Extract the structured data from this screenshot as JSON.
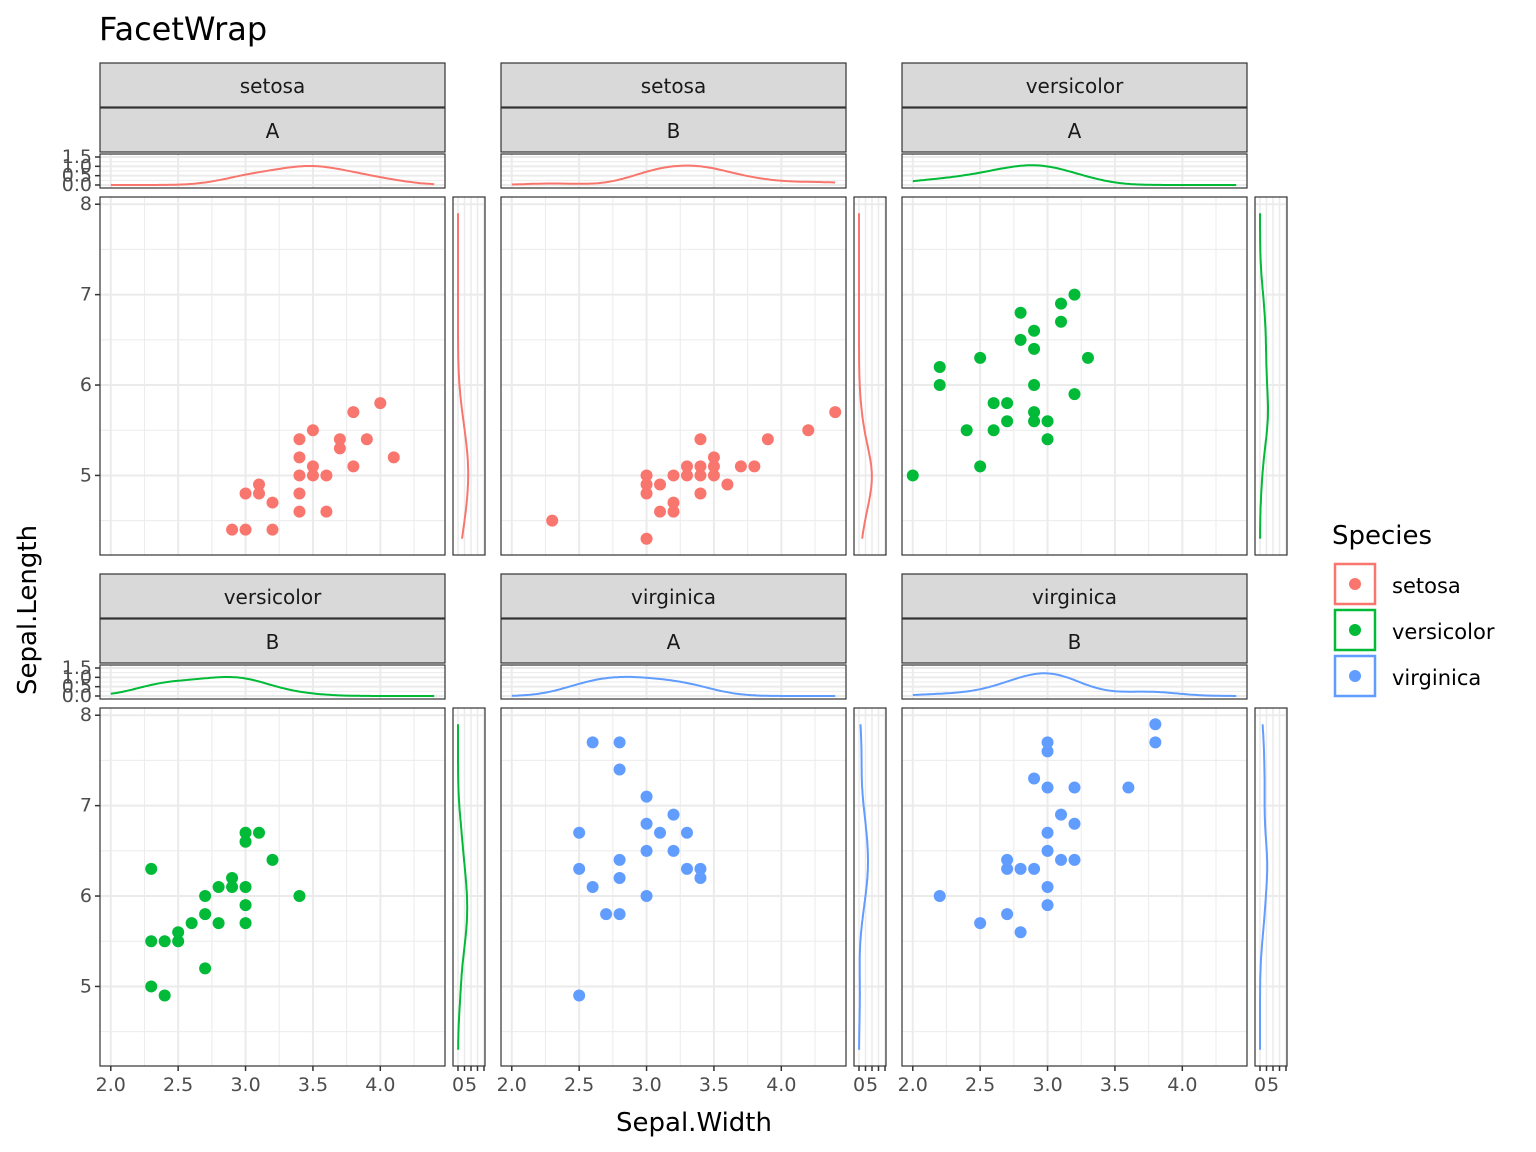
{
  "chart_data": {
    "type": "scatter",
    "title": "FacetWrap",
    "xlabel": "Sepal.Width",
    "ylabel": "Sepal.Length",
    "xlim": [
      1.92,
      4.48
    ],
    "ylim": [
      4.12,
      8.08
    ],
    "x_ticks": [
      2.0,
      2.5,
      3.0,
      3.5,
      4.0
    ],
    "x_tick_labels": [
      "2.0",
      "2.5",
      "3.0",
      "3.5",
      "4.0"
    ],
    "y_ticks": [
      5,
      6,
      7,
      8
    ],
    "y_tick_labels": [
      "5",
      "6",
      "7",
      "8"
    ],
    "top_density_ticks": [
      "0.0",
      "0.5",
      "1.0",
      "1.5"
    ],
    "right_density_ticks": [
      "0",
      "5"
    ],
    "grid": true,
    "legend": {
      "title": "Species",
      "position": "right",
      "entries": [
        {
          "label": "setosa",
          "color": "#F8766D"
        },
        {
          "label": "versicolor",
          "color": "#00BA38"
        },
        {
          "label": "virginica",
          "color": "#619CFF"
        }
      ]
    },
    "panels": [
      {
        "strip1": "setosa",
        "strip2": "A",
        "series": "setosa",
        "points": [
          [
            2.9,
            4.4
          ],
          [
            3.0,
            4.4
          ],
          [
            3.2,
            4.4
          ],
          [
            3.0,
            4.8
          ],
          [
            3.1,
            4.8
          ],
          [
            3.4,
            4.8
          ],
          [
            3.1,
            4.9
          ],
          [
            3.2,
            4.7
          ],
          [
            3.4,
            4.6
          ],
          [
            3.6,
            4.6
          ],
          [
            3.4,
            5.0
          ],
          [
            3.5,
            5.0
          ],
          [
            3.6,
            5.0
          ],
          [
            3.4,
            5.2
          ],
          [
            3.5,
            5.1
          ],
          [
            3.8,
            5.1
          ],
          [
            3.4,
            5.4
          ],
          [
            3.5,
            5.5
          ],
          [
            3.7,
            5.4
          ],
          [
            3.9,
            5.4
          ],
          [
            3.7,
            5.3
          ],
          [
            4.1,
            5.2
          ],
          [
            3.8,
            5.7
          ],
          [
            4.0,
            5.8
          ]
        ]
      },
      {
        "strip1": "setosa",
        "strip2": "B",
        "series": "setosa",
        "points": [
          [
            2.3,
            4.5
          ],
          [
            3.0,
            4.3
          ],
          [
            3.0,
            4.8
          ],
          [
            3.0,
            4.9
          ],
          [
            3.0,
            5.0
          ],
          [
            3.1,
            4.9
          ],
          [
            3.1,
            4.6
          ],
          [
            3.2,
            4.6
          ],
          [
            3.2,
            4.7
          ],
          [
            3.2,
            5.0
          ],
          [
            3.3,
            5.0
          ],
          [
            3.3,
            5.1
          ],
          [
            3.4,
            5.0
          ],
          [
            3.4,
            5.1
          ],
          [
            3.4,
            4.8
          ],
          [
            3.4,
            5.4
          ],
          [
            3.5,
            5.0
          ],
          [
            3.5,
            5.1
          ],
          [
            3.5,
            5.2
          ],
          [
            3.6,
            4.9
          ],
          [
            3.7,
            5.1
          ],
          [
            3.8,
            5.1
          ],
          [
            3.9,
            5.4
          ],
          [
            4.2,
            5.5
          ],
          [
            4.4,
            5.7
          ]
        ]
      },
      {
        "strip1": "versicolor",
        "strip2": "A",
        "series": "versicolor",
        "points": [
          [
            2.0,
            5.0
          ],
          [
            2.2,
            6.0
          ],
          [
            2.2,
            6.2
          ],
          [
            2.4,
            5.5
          ],
          [
            2.5,
            5.1
          ],
          [
            2.5,
            6.3
          ],
          [
            2.6,
            5.5
          ],
          [
            2.6,
            5.8
          ],
          [
            2.7,
            5.8
          ],
          [
            2.7,
            5.6
          ],
          [
            2.8,
            6.5
          ],
          [
            2.8,
            6.8
          ],
          [
            2.9,
            6.6
          ],
          [
            2.9,
            6.4
          ],
          [
            2.9,
            6.0
          ],
          [
            2.9,
            5.7
          ],
          [
            2.9,
            5.6
          ],
          [
            3.0,
            5.6
          ],
          [
            3.0,
            5.4
          ],
          [
            3.1,
            6.9
          ],
          [
            3.1,
            6.7
          ],
          [
            3.2,
            7.0
          ],
          [
            3.2,
            5.9
          ],
          [
            3.3,
            6.3
          ]
        ]
      },
      {
        "strip1": "versicolor",
        "strip2": "B",
        "series": "versicolor",
        "points": [
          [
            2.3,
            5.0
          ],
          [
            2.3,
            5.5
          ],
          [
            2.3,
            6.3
          ],
          [
            2.4,
            4.9
          ],
          [
            2.4,
            5.5
          ],
          [
            2.5,
            5.5
          ],
          [
            2.5,
            5.6
          ],
          [
            2.6,
            5.7
          ],
          [
            2.7,
            5.2
          ],
          [
            2.7,
            5.8
          ],
          [
            2.7,
            6.0
          ],
          [
            2.8,
            5.7
          ],
          [
            2.8,
            6.1
          ],
          [
            2.9,
            6.1
          ],
          [
            2.9,
            6.2
          ],
          [
            3.0,
            5.7
          ],
          [
            3.0,
            5.9
          ],
          [
            3.0,
            6.1
          ],
          [
            3.0,
            6.6
          ],
          [
            3.0,
            6.7
          ],
          [
            3.1,
            6.7
          ],
          [
            3.2,
            6.4
          ],
          [
            3.4,
            6.0
          ]
        ]
      },
      {
        "strip1": "virginica",
        "strip2": "A",
        "series": "virginica",
        "points": [
          [
            2.5,
            4.9
          ],
          [
            2.5,
            6.3
          ],
          [
            2.5,
            6.7
          ],
          [
            2.6,
            6.1
          ],
          [
            2.6,
            7.7
          ],
          [
            2.7,
            5.8
          ],
          [
            2.8,
            5.8
          ],
          [
            2.8,
            6.2
          ],
          [
            2.8,
            6.4
          ],
          [
            2.8,
            7.4
          ],
          [
            2.8,
            7.7
          ],
          [
            3.0,
            6.0
          ],
          [
            3.0,
            6.5
          ],
          [
            3.0,
            6.8
          ],
          [
            3.0,
            7.1
          ],
          [
            3.1,
            6.7
          ],
          [
            3.2,
            6.5
          ],
          [
            3.2,
            6.9
          ],
          [
            3.3,
            6.3
          ],
          [
            3.3,
            6.7
          ],
          [
            3.4,
            6.2
          ],
          [
            3.4,
            6.3
          ]
        ]
      },
      {
        "strip1": "virginica",
        "strip2": "B",
        "series": "virginica",
        "points": [
          [
            2.2,
            6.0
          ],
          [
            2.5,
            5.7
          ],
          [
            2.7,
            5.8
          ],
          [
            2.7,
            6.3
          ],
          [
            2.7,
            6.4
          ],
          [
            2.8,
            5.6
          ],
          [
            2.8,
            6.3
          ],
          [
            2.9,
            6.3
          ],
          [
            2.9,
            7.3
          ],
          [
            3.0,
            5.9
          ],
          [
            3.0,
            6.1
          ],
          [
            3.0,
            6.5
          ],
          [
            3.0,
            6.7
          ],
          [
            3.0,
            7.2
          ],
          [
            3.0,
            7.6
          ],
          [
            3.0,
            7.7
          ],
          [
            3.1,
            6.4
          ],
          [
            3.1,
            6.9
          ],
          [
            3.2,
            6.4
          ],
          [
            3.2,
            6.8
          ],
          [
            3.2,
            7.2
          ],
          [
            3.6,
            7.2
          ],
          [
            3.8,
            7.7
          ],
          [
            3.8,
            7.9
          ]
        ]
      }
    ]
  }
}
